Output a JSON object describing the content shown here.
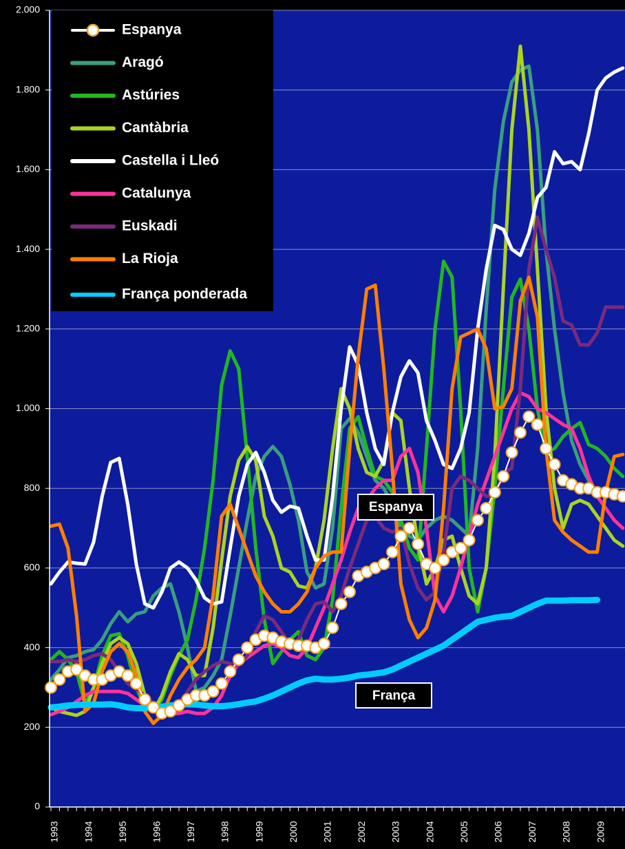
{
  "chart_data": {
    "type": "line",
    "categories": [
      "1993",
      null,
      null,
      null,
      "1994",
      null,
      null,
      null,
      "1995",
      null,
      null,
      null,
      "1996",
      null,
      null,
      null,
      "1997",
      null,
      null,
      null,
      "1998",
      null,
      null,
      null,
      "1999",
      null,
      null,
      null,
      "2000",
      null,
      null,
      null,
      "2001",
      null,
      null,
      null,
      "2002",
      null,
      null,
      null,
      "2003",
      null,
      null,
      null,
      "2004",
      null,
      null,
      null,
      "2005",
      null,
      null,
      null,
      "2006",
      null,
      null,
      null,
      "2007",
      null,
      null,
      null,
      "2008",
      null,
      null,
      null,
      "2009",
      null,
      null,
      null
    ],
    "ylim": [
      0,
      2000
    ],
    "yticks": [
      0,
      200,
      400,
      600,
      800,
      {
        "value": 1000,
        "label": "1.000"
      },
      {
        "value": 1200,
        "label": "1.200"
      },
      {
        "value": 1400,
        "label": "1.400"
      },
      {
        "value": 1600,
        "label": "1.600"
      },
      {
        "value": 1800,
        "label": "1.800"
      },
      {
        "value": 2000,
        "label": "2.000"
      }
    ],
    "grid": true,
    "legend": "top-left",
    "annotations": [
      "Espanya",
      "França"
    ],
    "series": [
      {
        "name": "Espanya",
        "color": "#f5a623",
        "markers": true,
        "values": [
          300,
          320,
          340,
          345,
          330,
          320,
          320,
          330,
          340,
          330,
          310,
          270,
          250,
          235,
          240,
          255,
          270,
          280,
          280,
          290,
          310,
          340,
          370,
          400,
          420,
          430,
          425,
          415,
          410,
          405,
          405,
          400,
          410,
          450,
          510,
          540,
          580,
          590,
          600,
          610,
          640,
          680,
          700,
          660,
          610,
          600,
          620,
          640,
          650,
          670,
          720,
          750,
          790,
          830,
          890,
          940,
          980,
          960,
          900,
          860,
          820,
          810,
          800,
          800,
          790,
          790,
          785,
          780
        ]
      },
      {
        "name": "Aragó",
        "color": "#3a9e7e",
        "values": [
          320,
          345,
          375,
          380,
          390,
          395,
          420,
          460,
          490,
          465,
          485,
          490,
          530,
          550,
          560,
          490,
          400,
          290,
          300,
          330,
          370,
          480,
          600,
          720,
          830,
          880,
          905,
          880,
          810,
          720,
          590,
          550,
          560,
          700,
          950,
          975,
          940,
          880,
          820,
          800,
          760,
          700,
          680,
          670,
          700,
          720,
          730,
          720,
          700,
          680,
          900,
          1250,
          1550,
          1720,
          1820,
          1850,
          1860,
          1700,
          1400,
          1200,
          1040,
          920,
          860,
          820,
          790,
          780,
          785,
          785
        ]
      },
      {
        "name": "Astúries",
        "color": "#22b622",
        "values": [
          370,
          390,
          370,
          340,
          260,
          300,
          380,
          430,
          435,
          380,
          300,
          250,
          240,
          270,
          330,
          380,
          420,
          520,
          650,
          820,
          1060,
          1145,
          1100,
          880,
          650,
          470,
          360,
          390,
          420,
          440,
          380,
          370,
          400,
          520,
          750,
          950,
          980,
          900,
          830,
          820,
          790,
          720,
          650,
          620,
          900,
          1200,
          1370,
          1330,
          1000,
          600,
          490,
          600,
          800,
          1050,
          1280,
          1325,
          1200,
          1000,
          890,
          900,
          930,
          950,
          965,
          910,
          900,
          880,
          850,
          830
        ]
      },
      {
        "name": "Cantàbria",
        "color": "#a8d420",
        "values": [
          250,
          240,
          235,
          230,
          240,
          300,
          360,
          410,
          425,
          410,
          360,
          280,
          240,
          280,
          340,
          385,
          370,
          330,
          330,
          450,
          620,
          780,
          870,
          905,
          870,
          730,
          680,
          600,
          590,
          555,
          550,
          600,
          720,
          900,
          1050,
          1000,
          900,
          840,
          830,
          870,
          990,
          970,
          800,
          660,
          560,
          600,
          670,
          680,
          600,
          530,
          510,
          600,
          880,
          1300,
          1700,
          1910,
          1700,
          1350,
          1000,
          800,
          700,
          760,
          770,
          760,
          730,
          700,
          670,
          655
        ]
      },
      {
        "name": "Castella i Lleó",
        "color": "#ffffff",
        "values": [
          560,
          590,
          615,
          612,
          610,
          665,
          780,
          865,
          875,
          760,
          610,
          510,
          500,
          540,
          600,
          615,
          600,
          570,
          525,
          510,
          515,
          650,
          780,
          860,
          890,
          840,
          770,
          740,
          755,
          750,
          680,
          620,
          620,
          780,
          1000,
          1155,
          1110,
          990,
          900,
          860,
          990,
          1080,
          1120,
          1090,
          970,
          920,
          860,
          850,
          900,
          990,
          1200,
          1350,
          1460,
          1450,
          1400,
          1385,
          1440,
          1530,
          1555,
          1645,
          1615,
          1620,
          1600,
          1690,
          1800,
          1830,
          1845,
          1855
        ]
      },
      {
        "name": "Catalunya",
        "color": "#ff3399",
        "values": [
          232,
          240,
          250,
          265,
          280,
          290,
          290,
          290,
          290,
          285,
          270,
          255,
          245,
          240,
          235,
          235,
          240,
          235,
          235,
          250,
          280,
          330,
          360,
          375,
          390,
          405,
          410,
          400,
          380,
          375,
          400,
          450,
          500,
          560,
          620,
          690,
          750,
          770,
          800,
          820,
          820,
          880,
          900,
          840,
          700,
          530,
          490,
          530,
          600,
          680,
          760,
          820,
          880,
          940,
          1000,
          1040,
          1030,
          1000,
          990,
          975,
          960,
          950,
          900,
          830,
          780,
          750,
          720,
          700
        ]
      },
      {
        "name": "Euskadi",
        "color": "#7b2a7b",
        "values": [
          365,
          365,
          370,
          365,
          370,
          380,
          385,
          370,
          340,
          310,
          295,
          280,
          260,
          250,
          250,
          260,
          290,
          320,
          340,
          355,
          365,
          360,
          355,
          380,
          440,
          480,
          470,
          440,
          410,
          420,
          470,
          510,
          515,
          490,
          530,
          600,
          660,
          720,
          730,
          700,
          690,
          700,
          610,
          550,
          520,
          540,
          640,
          800,
          830,
          820,
          800,
          780,
          780,
          840,
          850,
          1050,
          1350,
          1480,
          1400,
          1330,
          1220,
          1210,
          1160,
          1160,
          1190,
          1255,
          1255,
          1255
        ]
      },
      {
        "name": "La Rioja",
        "color": "#ff7f00",
        "values": [
          705,
          710,
          650,
          480,
          240,
          260,
          340,
          390,
          410,
          390,
          330,
          240,
          210,
          230,
          280,
          320,
          350,
          370,
          400,
          530,
          730,
          760,
          700,
          640,
          580,
          540,
          510,
          490,
          490,
          510,
          540,
          600,
          630,
          640,
          640,
          900,
          1130,
          1300,
          1310,
          1100,
          850,
          560,
          470,
          425,
          450,
          520,
          750,
          1050,
          1180,
          1190,
          1200,
          1150,
          1000,
          1005,
          1050,
          1270,
          1330,
          1230,
          900,
          720,
          690,
          670,
          655,
          640,
          640,
          790,
          880,
          885
        ]
      },
      {
        "name": "França ponderada",
        "color": "#00ccff",
        "values": [
          250,
          252,
          255,
          256,
          257,
          257,
          257,
          258,
          255,
          250,
          248,
          248,
          250,
          252,
          255,
          257,
          258,
          257,
          255,
          253,
          253,
          255,
          258,
          262,
          265,
          272,
          280,
          290,
          300,
          310,
          318,
          322,
          320,
          320,
          322,
          325,
          330,
          332,
          335,
          338,
          345,
          355,
          365,
          375,
          385,
          395,
          405,
          420,
          435,
          450,
          465,
          470,
          475,
          478,
          480,
          490,
          500,
          510,
          518,
          518,
          518,
          519,
          519,
          519,
          520,
          null,
          null,
          null
        ]
      }
    ]
  }
}
